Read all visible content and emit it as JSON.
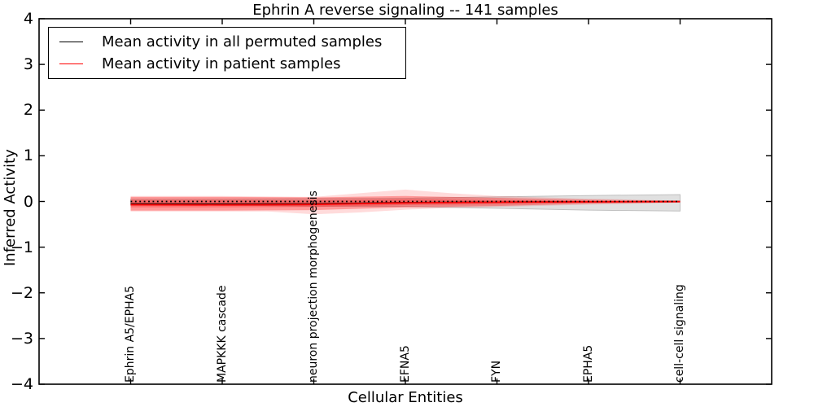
{
  "chart_data": {
    "type": "line",
    "title": "Ephrin A  reverse signaling -- 141 samples",
    "xlabel": "Cellular Entities",
    "ylabel": "Inferred Activity",
    "xlim": [
      -1,
      7
    ],
    "ylim": [
      -4,
      4
    ],
    "grid": false,
    "x": [
      0,
      1,
      2,
      3,
      4,
      5,
      6
    ],
    "categories": [
      "Ephrin A5/EPHA5",
      "MAPKKK cascade",
      "neuron projection morphogenesis",
      "EFNA5",
      "FYN",
      "EPHA5",
      "cell-cell signaling"
    ],
    "yticks": [
      -4,
      -3,
      -2,
      -1,
      0,
      1,
      2,
      3,
      4
    ],
    "ytick_labels": [
      "−4",
      "−3",
      "−2",
      "−1",
      "0",
      "1",
      "2",
      "3",
      "4"
    ],
    "legend": {
      "position": "upper-left",
      "entries": [
        {
          "label": "Mean activity in all permuted samples",
          "color": "#000000"
        },
        {
          "label": "Mean activity in patient samples",
          "color": "#ff0000"
        }
      ]
    },
    "reference_line": {
      "y": 0,
      "color": "#000000",
      "style": "dotted"
    },
    "series": [
      {
        "name": "Mean activity in all permuted samples",
        "color": "#000000",
        "style": "solid",
        "width": 1.4,
        "values": [
          -0.05,
          -0.055,
          -0.05,
          -0.022,
          -0.012,
          -0.006,
          -0.002
        ]
      },
      {
        "name": "Mean activity in patient samples",
        "color": "#ff0000",
        "style": "solid",
        "width": 1.8,
        "values": [
          -0.07,
          -0.075,
          -0.065,
          -0.03,
          -0.015,
          -0.008,
          -0.003
        ]
      }
    ],
    "bands": [
      {
        "name": "permuted-samples-spread",
        "color": "#909090",
        "opacity": 0.28,
        "edge": "#c0c0c0",
        "x": [
          0,
          1,
          2,
          3,
          4,
          5,
          6
        ],
        "upper": [
          0.05,
          0.05,
          0.06,
          0.07,
          0.1,
          0.13,
          0.15
        ],
        "lower": [
          -0.08,
          -0.08,
          -0.1,
          -0.11,
          -0.15,
          -0.19,
          -0.21
        ]
      },
      {
        "name": "patient-samples-spread-outer",
        "color": "#ff0000",
        "opacity": 0.14,
        "edge": "none",
        "x": [
          0,
          1,
          1.5,
          2,
          2.5,
          3,
          3.5,
          4,
          5,
          6
        ],
        "upper": [
          0.12,
          0.12,
          0.11,
          0.1,
          0.18,
          0.26,
          0.18,
          0.12,
          0.06,
          0.02
        ],
        "lower": [
          -0.22,
          -0.22,
          -0.22,
          -0.28,
          -0.24,
          -0.18,
          -0.14,
          -0.12,
          -0.07,
          -0.03
        ]
      },
      {
        "name": "patient-samples-spread",
        "color": "#ff0000",
        "opacity": 0.3,
        "edge": "none",
        "x": [
          0,
          1,
          2,
          3,
          4,
          5,
          6
        ],
        "upper": [
          0.1,
          0.1,
          0.09,
          0.12,
          0.08,
          0.04,
          0.015
        ],
        "lower": [
          -0.2,
          -0.2,
          -0.19,
          -0.13,
          -0.1,
          -0.05,
          -0.02
        ]
      },
      {
        "name": "patient-samples-spread-inner",
        "color": "#ff0000",
        "opacity": 0.25,
        "edge": "none",
        "x": [
          0,
          1,
          2,
          3,
          4,
          5,
          6
        ],
        "upper": [
          0.03,
          0.03,
          0.025,
          0.05,
          0.03,
          0.015,
          0.005
        ],
        "lower": [
          -0.13,
          -0.13,
          -0.12,
          -0.08,
          -0.06,
          -0.03,
          -0.01
        ]
      }
    ]
  }
}
